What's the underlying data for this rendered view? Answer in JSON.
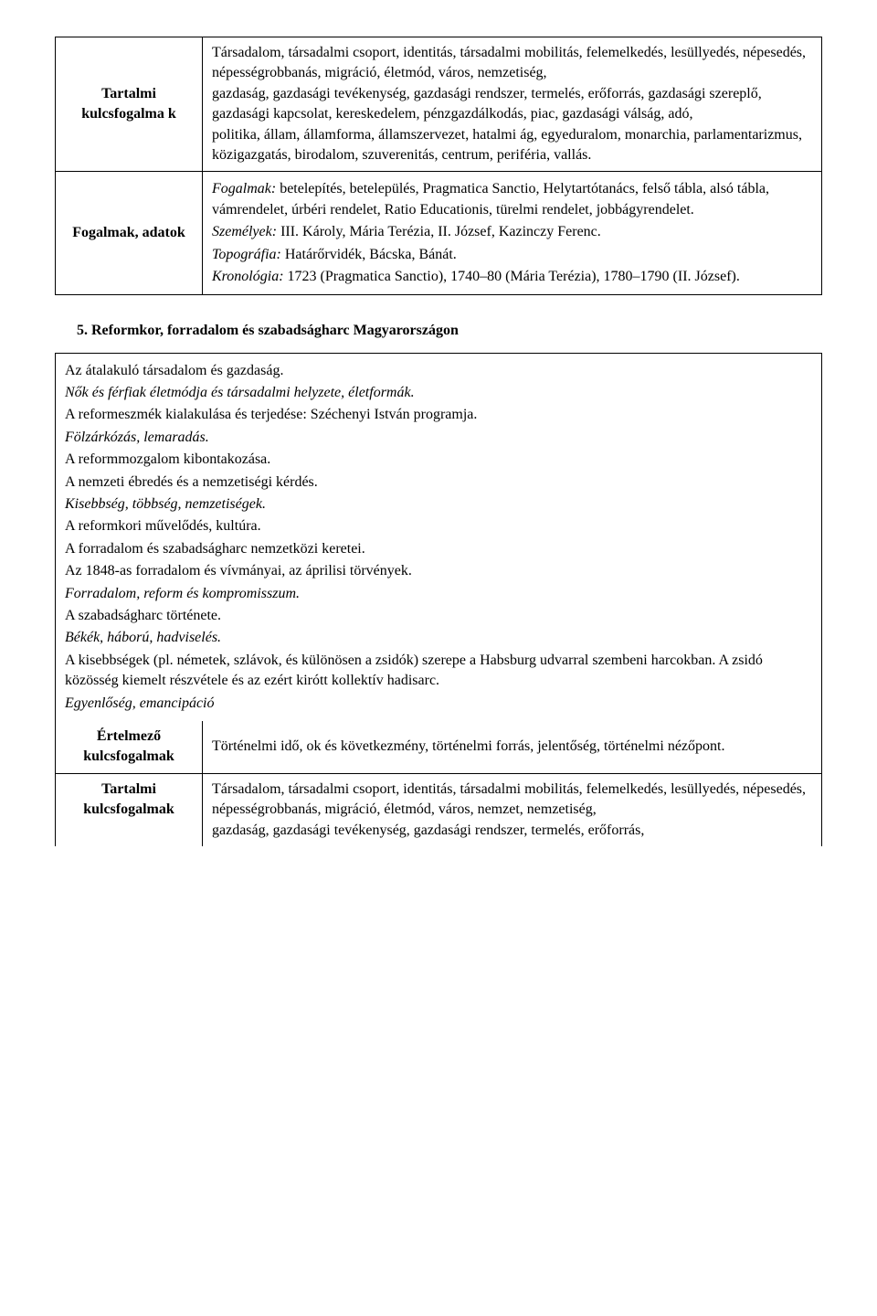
{
  "table1": {
    "row1": {
      "label": "Tartalmi kulcsfogalma k",
      "content": "Társadalom, társadalmi csoport, identitás, társadalmi mobilitás, felemelkedés, lesüllyedés, népesedés, népességrobbanás, migráció, életmód, város, nemzetiség,\ngazdaság, gazdasági tevékenység, gazdasági rendszer, termelés, erőforrás, gazdasági szereplő, gazdasági kapcsolat, kereskedelem, pénzgazdálkodás, piac, gazdasági válság, adó,\npolitika, állam, államforma, államszervezet, hatalmi ág, egyeduralom, monarchia, parlamentarizmus, közigazgatás, birodalom, szuverenitás, centrum, periféria, vallás."
    },
    "row2": {
      "label": "Fogalmak, adatok",
      "p1_prefix": "Fogalmak:",
      "p1_rest": " betelepítés, betelepülés, Pragmatica Sanctio, Helytartótanács, felső tábla, alsó tábla, vámrendelet, úrbéri rendelet, Ratio Educationis, türelmi rendelet, jobbágyrendelet.",
      "p2_prefix": "Személyek:",
      "p2_rest": " III. Károly, Mária Terézia, II. József, Kazinczy Ferenc.",
      "p3_prefix": "Topográfia:",
      "p3_rest": " Határőrvidék, Bácska, Bánát.",
      "p4_prefix": "Kronológia:",
      "p4_rest": " 1723 (Pragmatica Sanctio), 1740–80 (Mária Terézia), 1780–1790 (II. József)."
    }
  },
  "heading": "5.   Reformkor, forradalom és szabadságharc Magyarországon",
  "table2": {
    "intro": [
      {
        "text": "Az átalakuló társadalom és gazdaság.",
        "italic": false
      },
      {
        "text": "Nők és férfiak életmódja és társadalmi helyzete, életformák.",
        "italic": true
      },
      {
        "text": "A reformeszmék kialakulása és terjedése: Széchenyi István programja.",
        "italic": false
      },
      {
        "text": "Fölzárkózás, lemaradás.",
        "italic": true
      },
      {
        "text": "A reformmozgalom kibontakozása.",
        "italic": false
      },
      {
        "text": "A nemzeti ébredés és a nemzetiségi kérdés.",
        "italic": false
      },
      {
        "text": "Kisebbség, többség, nemzetiségek.",
        "italic": true
      },
      {
        "text": "A reformkori művelődés, kultúra.",
        "italic": false
      },
      {
        "text": "A forradalom és szabadságharc nemzetközi keretei.",
        "italic": false
      },
      {
        "text": "Az 1848-as forradalom és vívmányai, az áprilisi törvények.",
        "italic": false
      },
      {
        "text": "Forradalom, reform és kompromisszum.",
        "italic": true
      },
      {
        "text": "A szabadságharc története.",
        "italic": false
      },
      {
        "text": "Békék, háború, hadviselés.",
        "italic": true
      },
      {
        "text": "A kisebbségek (pl. németek, szlávok, és különösen a zsidók) szerepe a Habsburg udvarral szembeni harcokban. A zsidó közösség kiemelt részvétele és az ezért kirótt kollektív hadisarc.",
        "italic": false
      },
      {
        "text": "Egyenlőség, emancipáció",
        "italic": true
      }
    ],
    "row2": {
      "label": "Értelmező kulcsfogalmak",
      "content": "Történelmi idő, ok és következmény, történelmi forrás, jelentőség, történelmi nézőpont."
    },
    "row3": {
      "label": "Tartalmi kulcsfogalmak",
      "content": "Társadalom, társadalmi csoport, identitás, társadalmi mobilitás, felemelkedés, lesüllyedés, népesedés, népességrobbanás, migráció, életmód, város, nemzet, nemzetiség,\ngazdaság, gazdasági tevékenység, gazdasági rendszer, termelés, erőforrás,"
    }
  }
}
